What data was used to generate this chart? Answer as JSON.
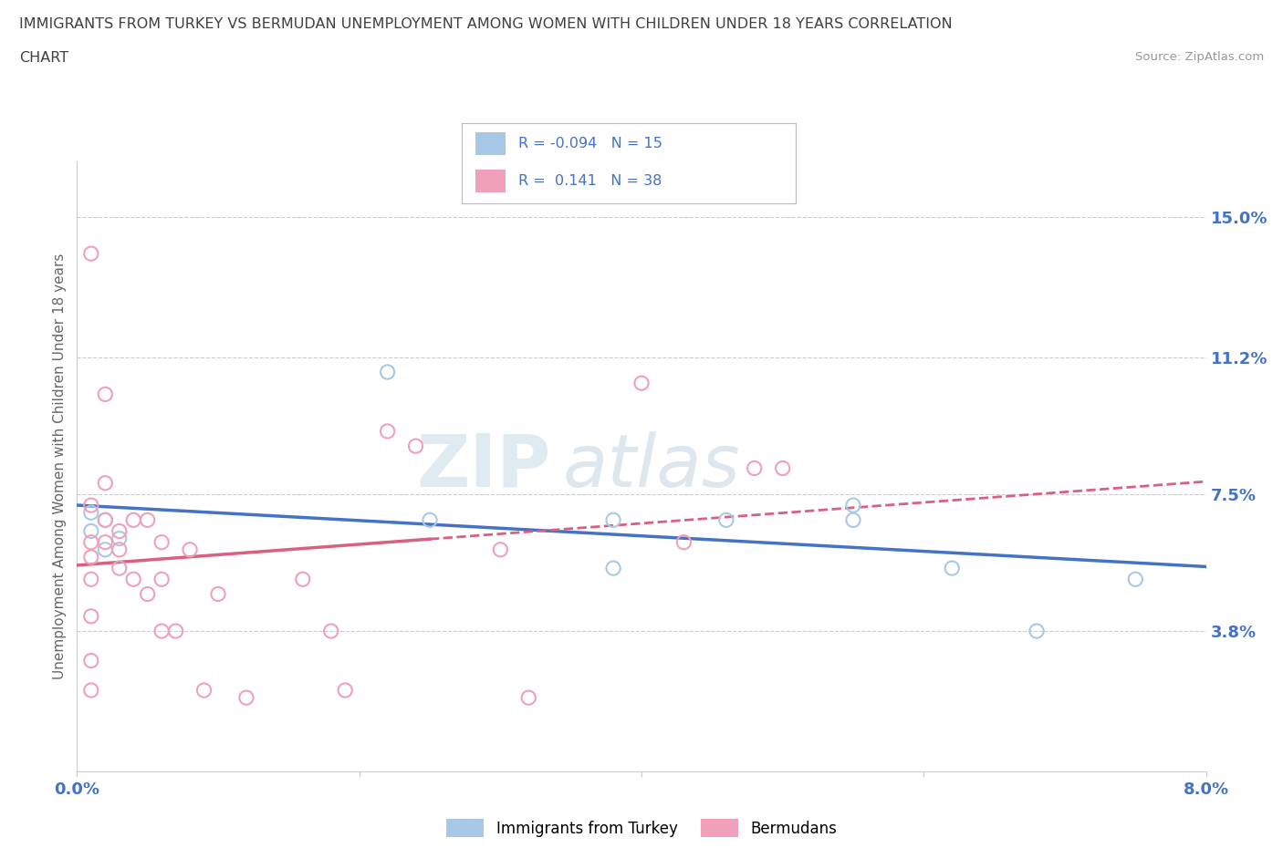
{
  "title_line1": "IMMIGRANTS FROM TURKEY VS BERMUDAN UNEMPLOYMENT AMONG WOMEN WITH CHILDREN UNDER 18 YEARS CORRELATION",
  "title_line2": "CHART",
  "source": "Source: ZipAtlas.com",
  "ylabel": "Unemployment Among Women with Children Under 18 years",
  "xlim": [
    0.0,
    0.08
  ],
  "ylim": [
    0.0,
    0.165
  ],
  "xticks": [
    0.0,
    0.02,
    0.04,
    0.06,
    0.08
  ],
  "xticklabels": [
    "0.0%",
    "",
    "",
    "",
    "8.0%"
  ],
  "ytick_positions": [
    0.038,
    0.075,
    0.112,
    0.15
  ],
  "ytick_labels": [
    "3.8%",
    "7.5%",
    "11.2%",
    "15.0%"
  ],
  "color_turkey": "#a8c8e8",
  "color_bermuda": "#f0a0b8",
  "color_turkey_line": "#4472c4",
  "color_bermuda_line": "#d96080",
  "R_turkey": -0.094,
  "N_turkey": 15,
  "R_bermuda": 0.141,
  "N_bermuda": 38,
  "legend_label_turkey": "Immigrants from Turkey",
  "legend_label_bermuda": "Bermudans",
  "watermark_zip": "ZIP",
  "watermark_atlas": "atlas",
  "turkey_points_x": [
    0.001,
    0.001,
    0.002,
    0.002,
    0.003,
    0.022,
    0.025,
    0.038,
    0.038,
    0.046,
    0.055,
    0.055,
    0.062,
    0.068,
    0.075
  ],
  "turkey_points_y": [
    0.065,
    0.07,
    0.06,
    0.068,
    0.063,
    0.108,
    0.068,
    0.068,
    0.055,
    0.068,
    0.072,
    0.068,
    0.055,
    0.038,
    0.052
  ],
  "bermuda_points_x": [
    0.001,
    0.001,
    0.001,
    0.001,
    0.001,
    0.001,
    0.001,
    0.001,
    0.002,
    0.002,
    0.002,
    0.002,
    0.003,
    0.003,
    0.003,
    0.004,
    0.004,
    0.005,
    0.005,
    0.006,
    0.006,
    0.006,
    0.007,
    0.008,
    0.009,
    0.01,
    0.012,
    0.016,
    0.018,
    0.019,
    0.022,
    0.024,
    0.03,
    0.032,
    0.04,
    0.043,
    0.048,
    0.05
  ],
  "bermuda_points_y": [
    0.14,
    0.072,
    0.062,
    0.058,
    0.052,
    0.042,
    0.03,
    0.022,
    0.102,
    0.078,
    0.068,
    0.062,
    0.065,
    0.06,
    0.055,
    0.068,
    0.052,
    0.068,
    0.048,
    0.062,
    0.052,
    0.038,
    0.038,
    0.06,
    0.022,
    0.048,
    0.02,
    0.052,
    0.038,
    0.022,
    0.092,
    0.088,
    0.06,
    0.02,
    0.105,
    0.062,
    0.082,
    0.082
  ],
  "background_color": "#ffffff",
  "grid_color": "#cccccc",
  "text_color": "#4472c4",
  "title_color": "#404040",
  "axis_color": "#cccccc"
}
